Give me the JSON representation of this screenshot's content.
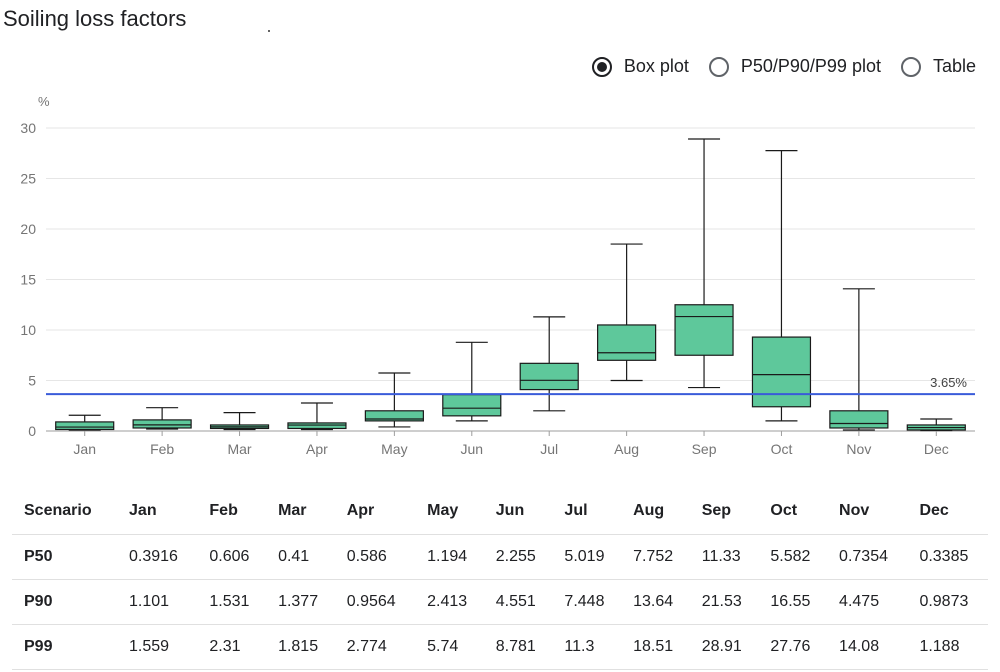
{
  "title": "Soiling loss factors",
  "view_options": [
    {
      "label": "Box plot",
      "selected": true
    },
    {
      "label": "P50/P90/P99 plot",
      "selected": false
    },
    {
      "label": "Table",
      "selected": false
    }
  ],
  "colors": {
    "box_fill": "#5ec89b",
    "box_stroke": "#1a1a1a",
    "reference_line": "#3a5bd9",
    "grid": "#e6e6e6",
    "axis_text": "#757575"
  },
  "chart_data": {
    "type": "box",
    "ylabel": "%",
    "ylim": [
      0,
      30
    ],
    "yticks": [
      0,
      5,
      10,
      15,
      20,
      25,
      30
    ],
    "grid": true,
    "categories": [
      "Jan",
      "Feb",
      "Mar",
      "Apr",
      "May",
      "Jun",
      "Jul",
      "Aug",
      "Sep",
      "Oct",
      "Nov",
      "Dec"
    ],
    "boxes": [
      {
        "min": 0.1,
        "q1": 0.15,
        "median": 0.39,
        "q3": 0.9,
        "max": 1.56
      },
      {
        "min": 0.2,
        "q1": 0.3,
        "median": 0.61,
        "q3": 1.1,
        "max": 2.31
      },
      {
        "min": 0.15,
        "q1": 0.25,
        "median": 0.41,
        "q3": 0.6,
        "max": 1.82
      },
      {
        "min": 0.15,
        "q1": 0.25,
        "median": 0.59,
        "q3": 0.8,
        "max": 2.77
      },
      {
        "min": 0.4,
        "q1": 1.0,
        "median": 1.19,
        "q3": 2.0,
        "max": 5.74
      },
      {
        "min": 1.0,
        "q1": 1.5,
        "median": 2.26,
        "q3": 3.6,
        "max": 8.78
      },
      {
        "min": 2.0,
        "q1": 4.1,
        "median": 5.02,
        "q3": 6.7,
        "max": 11.3
      },
      {
        "min": 5.0,
        "q1": 7.0,
        "median": 7.75,
        "q3": 10.5,
        "max": 18.51
      },
      {
        "min": 4.3,
        "q1": 7.5,
        "median": 11.33,
        "q3": 12.5,
        "max": 28.91
      },
      {
        "min": 1.0,
        "q1": 2.4,
        "median": 5.58,
        "q3": 9.3,
        "max": 27.76
      },
      {
        "min": 0.1,
        "q1": 0.3,
        "median": 0.74,
        "q3": 2.0,
        "max": 14.08
      },
      {
        "min": 0.05,
        "q1": 0.1,
        "median": 0.34,
        "q3": 0.6,
        "max": 1.19
      }
    ],
    "reference_line": {
      "value": 3.65,
      "label": "3.65%"
    }
  },
  "table": {
    "headers": [
      "Scenario",
      "Jan",
      "Feb",
      "Mar",
      "Apr",
      "May",
      "Jun",
      "Jul",
      "Aug",
      "Sep",
      "Oct",
      "Nov",
      "Dec"
    ],
    "rows": [
      [
        "P50",
        "0.3916",
        "0.606",
        "0.41",
        "0.586",
        "1.194",
        "2.255",
        "5.019",
        "7.752",
        "11.33",
        "5.582",
        "0.7354",
        "0.3385"
      ],
      [
        "P90",
        "1.101",
        "1.531",
        "1.377",
        "0.9564",
        "2.413",
        "4.551",
        "7.448",
        "13.64",
        "21.53",
        "16.55",
        "4.475",
        "0.9873"
      ],
      [
        "P99",
        "1.559",
        "2.31",
        "1.815",
        "2.774",
        "5.74",
        "8.781",
        "11.3",
        "18.51",
        "28.91",
        "27.76",
        "14.08",
        "1.188"
      ]
    ]
  }
}
